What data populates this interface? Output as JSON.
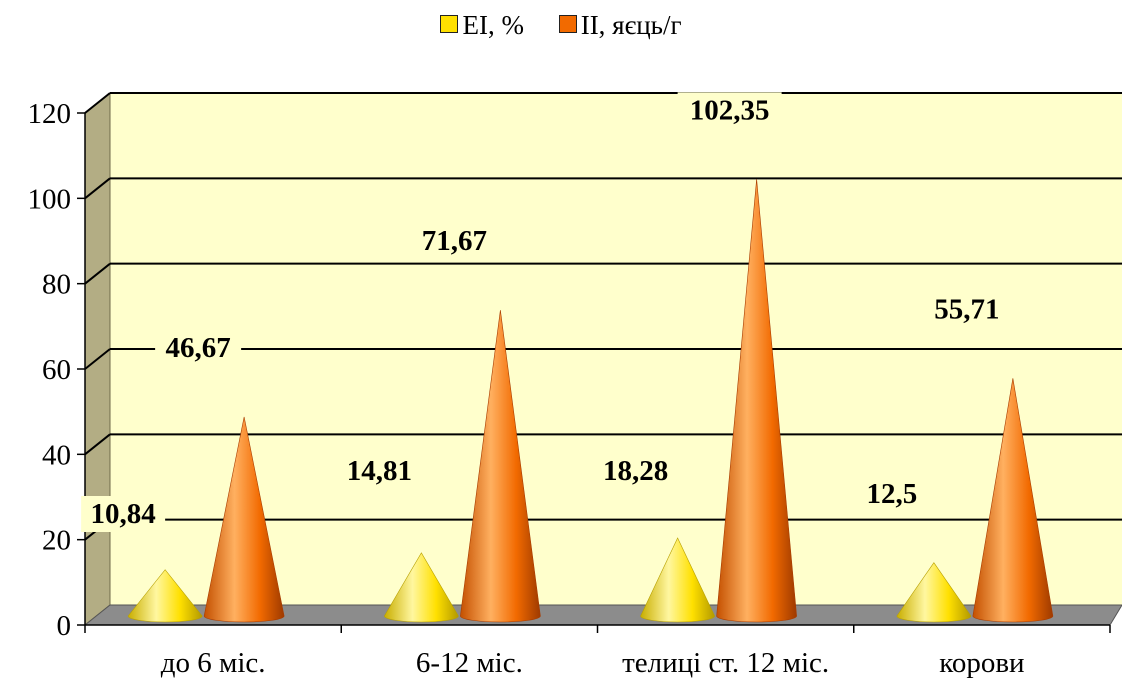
{
  "legend": {
    "ei_label": "EI, %",
    "ii_label": "II, яєць/г"
  },
  "colors": {
    "ei": "#FFE000",
    "ei_dark": "#B8A000",
    "ii": "#F26A00",
    "ii_dark": "#A83C00",
    "plot_bg": "#FFFFCC",
    "side_wall": "#B3AD84",
    "floor": "#8C8C8C"
  },
  "chart_data": {
    "type": "bar",
    "shape": "cone",
    "categories": [
      "до 6 міс.",
      "6-12 міс.",
      "телиці ст. 12 міс.",
      "корови"
    ],
    "series": [
      {
        "name": "EI, %",
        "values": [
          10.84,
          14.81,
          18.28,
          12.5
        ],
        "labels": [
          "10,84",
          "14,81",
          "18,28",
          "12,5"
        ]
      },
      {
        "name": "II, яєць/г",
        "values": [
          46.67,
          71.67,
          102.35,
          55.71
        ],
        "labels": [
          "46,67",
          "71,67",
          "102,35",
          "55,71"
        ]
      }
    ],
    "yticks": [
      "0",
      "20",
      "40",
      "60",
      "80",
      "100",
      "120"
    ],
    "ylim": [
      0,
      120
    ],
    "grid": true,
    "legend_position": "top"
  }
}
